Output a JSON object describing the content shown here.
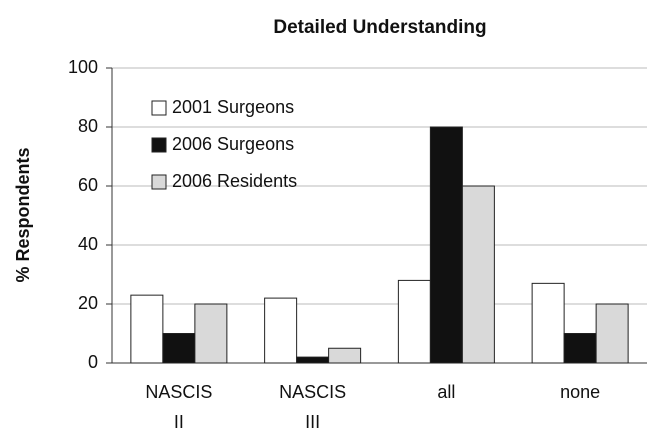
{
  "chart_data": {
    "type": "bar",
    "title": "Detailed Understanding",
    "ylabel": "% Respondents",
    "categories": [
      "NASCIS II",
      "NASCIS III",
      "all",
      "none"
    ],
    "series": [
      {
        "name": "2001 Surgeons",
        "color": "#ffffff",
        "values": [
          23,
          22,
          28,
          27
        ]
      },
      {
        "name": "2006 Surgeons",
        "color": "#111111",
        "values": [
          10,
          2,
          80,
          10
        ]
      },
      {
        "name": "2006 Residents",
        "color": "#d9d9d9",
        "values": [
          20,
          5,
          60,
          20
        ]
      }
    ],
    "ylim": [
      0,
      100
    ],
    "yticks": [
      0,
      20,
      40,
      60,
      80,
      100
    ],
    "grid": true,
    "legend": "upper left"
  }
}
